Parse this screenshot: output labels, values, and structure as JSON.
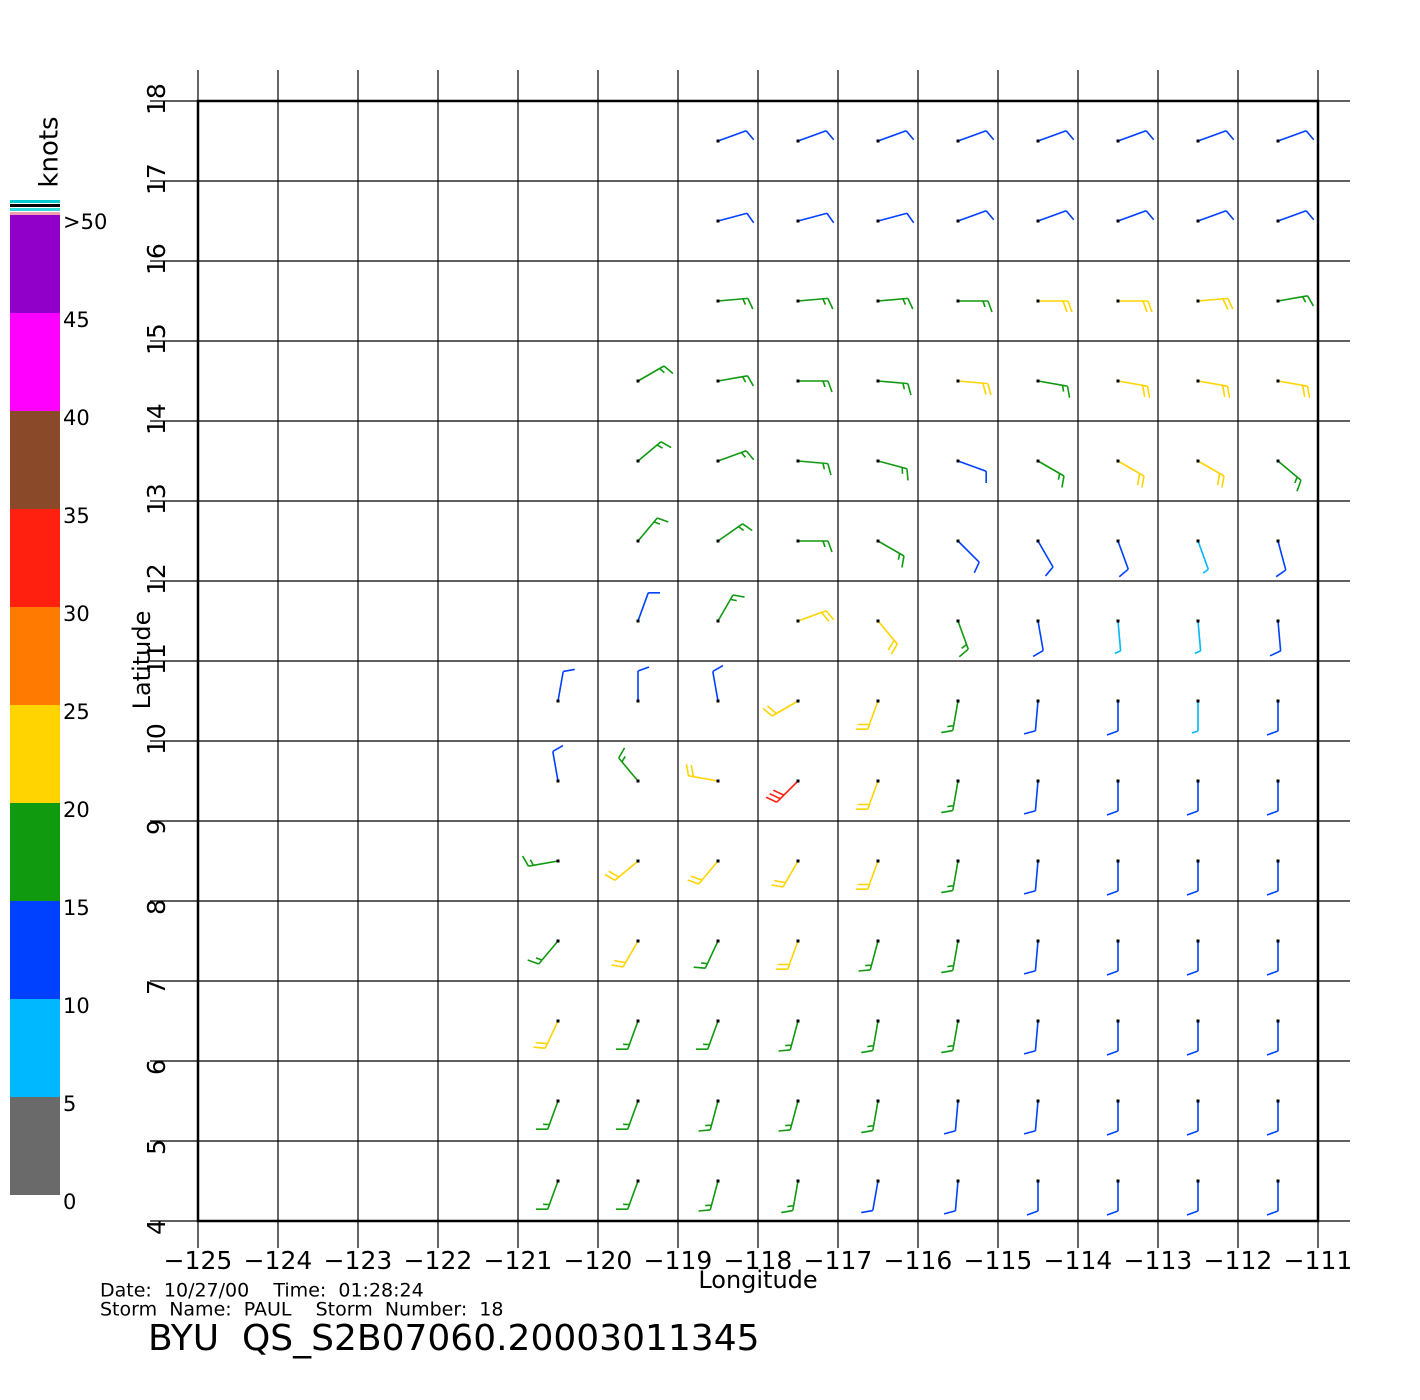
{
  "chart_data": {
    "type": "wind-barb",
    "x_label": "Longitude",
    "y_label": "Latitude",
    "xlim": [
      -125,
      -111
    ],
    "ylim": [
      4,
      18
    ],
    "xticks": [
      {
        "value": -125,
        "label": "−125"
      },
      {
        "value": -124,
        "label": "−124"
      },
      {
        "value": -123,
        "label": "−123"
      },
      {
        "value": -122,
        "label": "−122"
      },
      {
        "value": -121,
        "label": "−121"
      },
      {
        "value": -120,
        "label": "−120"
      },
      {
        "value": -119,
        "label": "−119"
      },
      {
        "value": -118,
        "label": "−118"
      },
      {
        "value": -117,
        "label": "−117"
      },
      {
        "value": -116,
        "label": "−116"
      },
      {
        "value": -115,
        "label": "−115"
      },
      {
        "value": -114,
        "label": "−114"
      },
      {
        "value": -113,
        "label": "−113"
      },
      {
        "value": -112,
        "label": "−112"
      },
      {
        "value": -111,
        "label": "−111"
      }
    ],
    "yticks": [
      4,
      5,
      6,
      7,
      8,
      9,
      10,
      11,
      12,
      13,
      14,
      15,
      16,
      17,
      18
    ],
    "grid": true,
    "info_lines": [
      "Date:  10/27/00    Time:  01:28:24",
      "Storm  Name:  PAUL    Storm  Number:  18"
    ],
    "footer": "BYU  QS_S2B07060.20003011345",
    "colorbar": {
      "label": "knots",
      "ticks": [
        0,
        5,
        10,
        15,
        20,
        25,
        30,
        35,
        40,
        45,
        {
          "value": 50,
          "label": ">50"
        }
      ],
      "colors": [
        "#6a6a6a",
        "#00b8ff",
        "#0040ff",
        "#109a10",
        "#ffd400",
        "#ff7a00",
        "#ff2010",
        "#8a4a2a",
        "#ff00ff",
        "#9000c8"
      ]
    },
    "wind": {
      "lon": [
        -120.5,
        -119.5,
        -118.5,
        -117.5,
        -116.5,
        -115.5,
        -114.5,
        -113.5,
        -112.5,
        -111.5
      ],
      "lat": [
        17.5,
        16.5,
        15.5,
        14.5,
        13.5,
        12.5,
        11.5,
        10.5,
        9.5,
        8.5,
        7.5,
        6.5,
        5.5,
        4.5
      ],
      "speed": [
        [
          null,
          null,
          12,
          12,
          11,
          11,
          12,
          11,
          12,
          12
        ],
        [
          null,
          null,
          12,
          13,
          13,
          12,
          12,
          12,
          12,
          12
        ],
        [
          null,
          null,
          17,
          17,
          16,
          19,
          20,
          22,
          21,
          17
        ],
        [
          null,
          17,
          17,
          16,
          18,
          20,
          17,
          22,
          22,
          24
        ],
        [
          null,
          18,
          17,
          15,
          15,
          13,
          18,
          20,
          22,
          18
        ],
        [
          null,
          16,
          17,
          19,
          17,
          14,
          12,
          10,
          9,
          12
        ],
        [
          null,
          12,
          15,
          22,
          20,
          16,
          12,
          9,
          8,
          10
        ],
        [
          12,
          11,
          13,
          24,
          22,
          17,
          14,
          10,
          8,
          10
        ],
        [
          13,
          19,
          22,
          30,
          23,
          17,
          13,
          12,
          11,
          11
        ],
        [
          16,
          20,
          21,
          24,
          21,
          16,
          14,
          13,
          12,
          11
        ],
        [
          18,
          21,
          19,
          21,
          19,
          16,
          13,
          12,
          11,
          11
        ],
        [
          20,
          18,
          18,
          17,
          16,
          15,
          13,
          12,
          11,
          11
        ],
        [
          17,
          17,
          16,
          16,
          15,
          14,
          13,
          12,
          11,
          12
        ],
        [
          16,
          16,
          15,
          15,
          14,
          14,
          13,
          12,
          12,
          12
        ]
      ],
      "direction": [
        [
          null,
          null,
          250,
          250,
          250,
          250,
          250,
          250,
          250,
          250
        ],
        [
          null,
          null,
          255,
          255,
          255,
          250,
          250,
          250,
          250,
          250
        ],
        [
          null,
          null,
          265,
          265,
          265,
          270,
          270,
          270,
          265,
          260
        ],
        [
          null,
          240,
          260,
          270,
          275,
          275,
          280,
          280,
          280,
          280
        ],
        [
          null,
          230,
          250,
          275,
          285,
          290,
          300,
          300,
          300,
          310
        ],
        [
          null,
          220,
          235,
          270,
          300,
          315,
          330,
          340,
          340,
          345
        ],
        [
          null,
          200,
          210,
          250,
          320,
          340,
          350,
          355,
          355,
          355
        ],
        [
          190,
          180,
          170,
          60,
          20,
          10,
          5,
          0,
          0,
          0
        ],
        [
          170,
          140,
          100,
          45,
          20,
          10,
          5,
          0,
          0,
          0
        ],
        [
          80,
          50,
          40,
          30,
          20,
          10,
          5,
          0,
          0,
          0
        ],
        [
          40,
          30,
          25,
          20,
          15,
          10,
          5,
          0,
          0,
          0
        ],
        [
          25,
          20,
          20,
          15,
          10,
          10,
          5,
          0,
          0,
          0
        ],
        [
          20,
          20,
          15,
          15,
          10,
          5,
          5,
          0,
          0,
          0
        ],
        [
          20,
          20,
          15,
          10,
          10,
          5,
          0,
          0,
          0,
          0
        ]
      ]
    }
  }
}
